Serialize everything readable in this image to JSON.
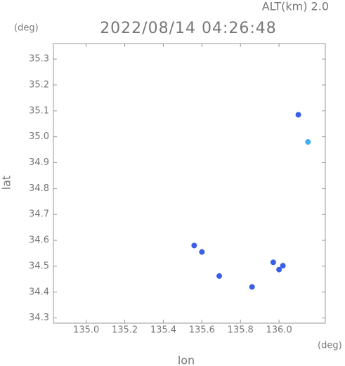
{
  "chart_data": {
    "type": "scatter",
    "title": "2022/08/14 04:26:48",
    "subtitle": "ALT(km) 2.0",
    "y_unit": "(deg)",
    "x_unit": "(deg)",
    "x_label": "lon",
    "y_label": "lat",
    "xlim": [
      134.83,
      136.24
    ],
    "ylim": [
      34.28,
      35.36
    ],
    "xticks": [
      {
        "value": 135.0,
        "label": "135.0"
      },
      135.2,
      135.4,
      135.6,
      135.8,
      {
        "value": 136.0,
        "label": "136.0"
      }
    ],
    "yticks": [
      34.3,
      34.4,
      34.5,
      34.6,
      34.7,
      34.8,
      34.9,
      {
        "value": 35.0,
        "label": "35.0"
      },
      35.1,
      35.2,
      35.3
    ],
    "series": [
      {
        "color": "#3a5ee6",
        "x": [
          136.1,
          135.56,
          135.6,
          135.69,
          135.86,
          135.97,
          136.02,
          136.0
        ],
        "values": [
          35.085,
          34.58,
          34.555,
          34.462,
          34.42,
          34.515,
          34.502,
          34.487
        ]
      },
      {
        "color": "#3fb2ee",
        "x": [
          136.15
        ],
        "values": [
          34.98
        ]
      }
    ]
  }
}
